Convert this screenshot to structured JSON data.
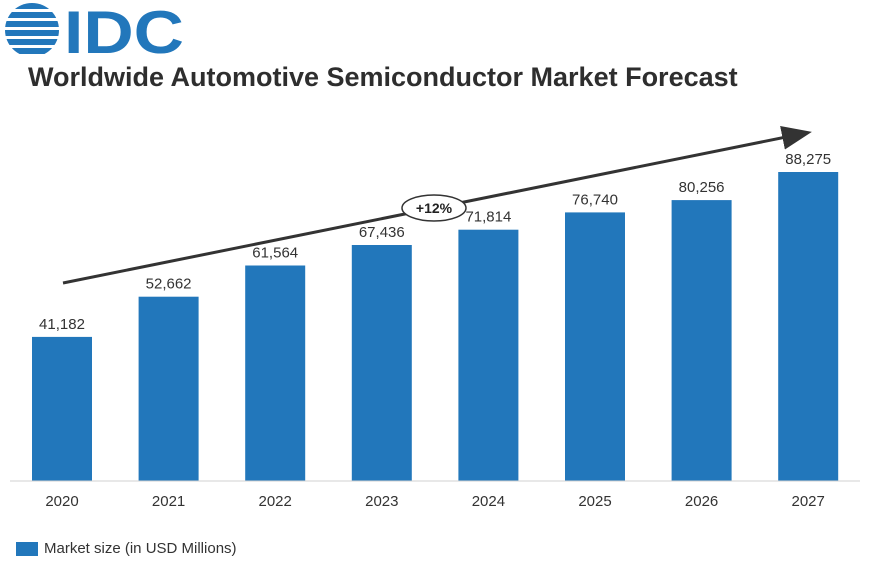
{
  "brand": {
    "logo_text": "IDC",
    "logo_color": "#2277bb"
  },
  "colors": {
    "bar": "#2277bb",
    "axis": "#d0d0d0",
    "arrow": "#333333"
  },
  "chart_data": {
    "type": "bar",
    "title": "Worldwide Automotive Semiconductor Market Forecast",
    "categories": [
      "2020",
      "2021",
      "2022",
      "2023",
      "2024",
      "2025",
      "2026",
      "2027"
    ],
    "series": [
      {
        "name": "Market size (in USD Millions)",
        "values": [
          41182,
          52662,
          61564,
          67436,
          71814,
          76740,
          80256,
          88275
        ]
      }
    ],
    "data_labels": [
      "41,182",
      "52,662",
      "61,564",
      "67,436",
      "71,814",
      "76,740",
      "80,256",
      "88,275"
    ],
    "annotation": "+12%",
    "trend_arrow": true,
    "xlabel": "",
    "ylabel": "",
    "ylim": [
      0,
      100000
    ],
    "y_axis_visible": false,
    "grid": false,
    "legend": "bottom-left"
  }
}
